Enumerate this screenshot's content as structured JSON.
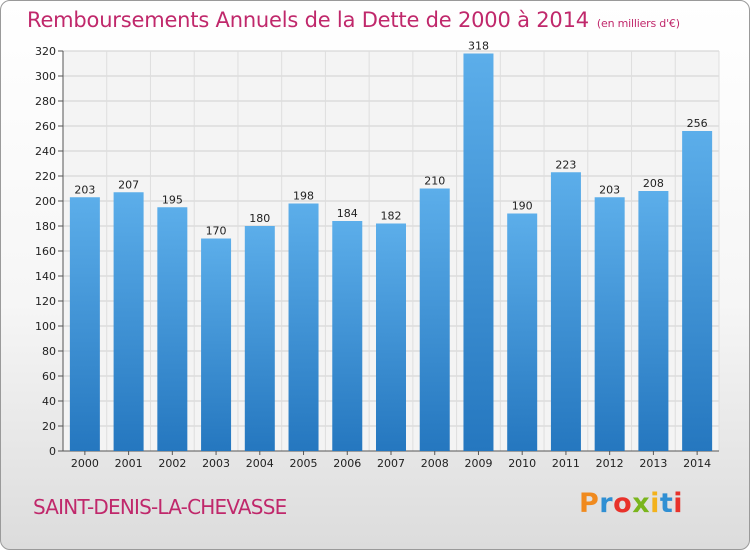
{
  "chart_data": {
    "type": "bar",
    "title": "Remboursements Annuels de la Dette de 2000 à 2014",
    "subtitle": "(en milliers d'€)",
    "categories": [
      "2000",
      "2001",
      "2002",
      "2003",
      "2004",
      "2005",
      "2006",
      "2007",
      "2008",
      "2009",
      "2010",
      "2011",
      "2012",
      "2013",
      "2014"
    ],
    "values": [
      203,
      207,
      195,
      170,
      180,
      198,
      184,
      182,
      210,
      318,
      190,
      223,
      203,
      208,
      256
    ],
    "ylim": [
      0,
      320
    ],
    "yticks": [
      0,
      20,
      40,
      60,
      80,
      100,
      120,
      140,
      160,
      180,
      200,
      220,
      240,
      260,
      280,
      300,
      320
    ],
    "grid": true,
    "bar_color": "#3d93d8"
  },
  "footer": {
    "location": "SAINT-DENIS-LA-CHEVASSE",
    "brand": "Proxiti",
    "brand_colors": [
      "#f08a1e",
      "#2f8fd3",
      "#e8322b",
      "#7ab51d",
      "#f3b21c",
      "#2f8fd3",
      "#e8322b"
    ]
  }
}
